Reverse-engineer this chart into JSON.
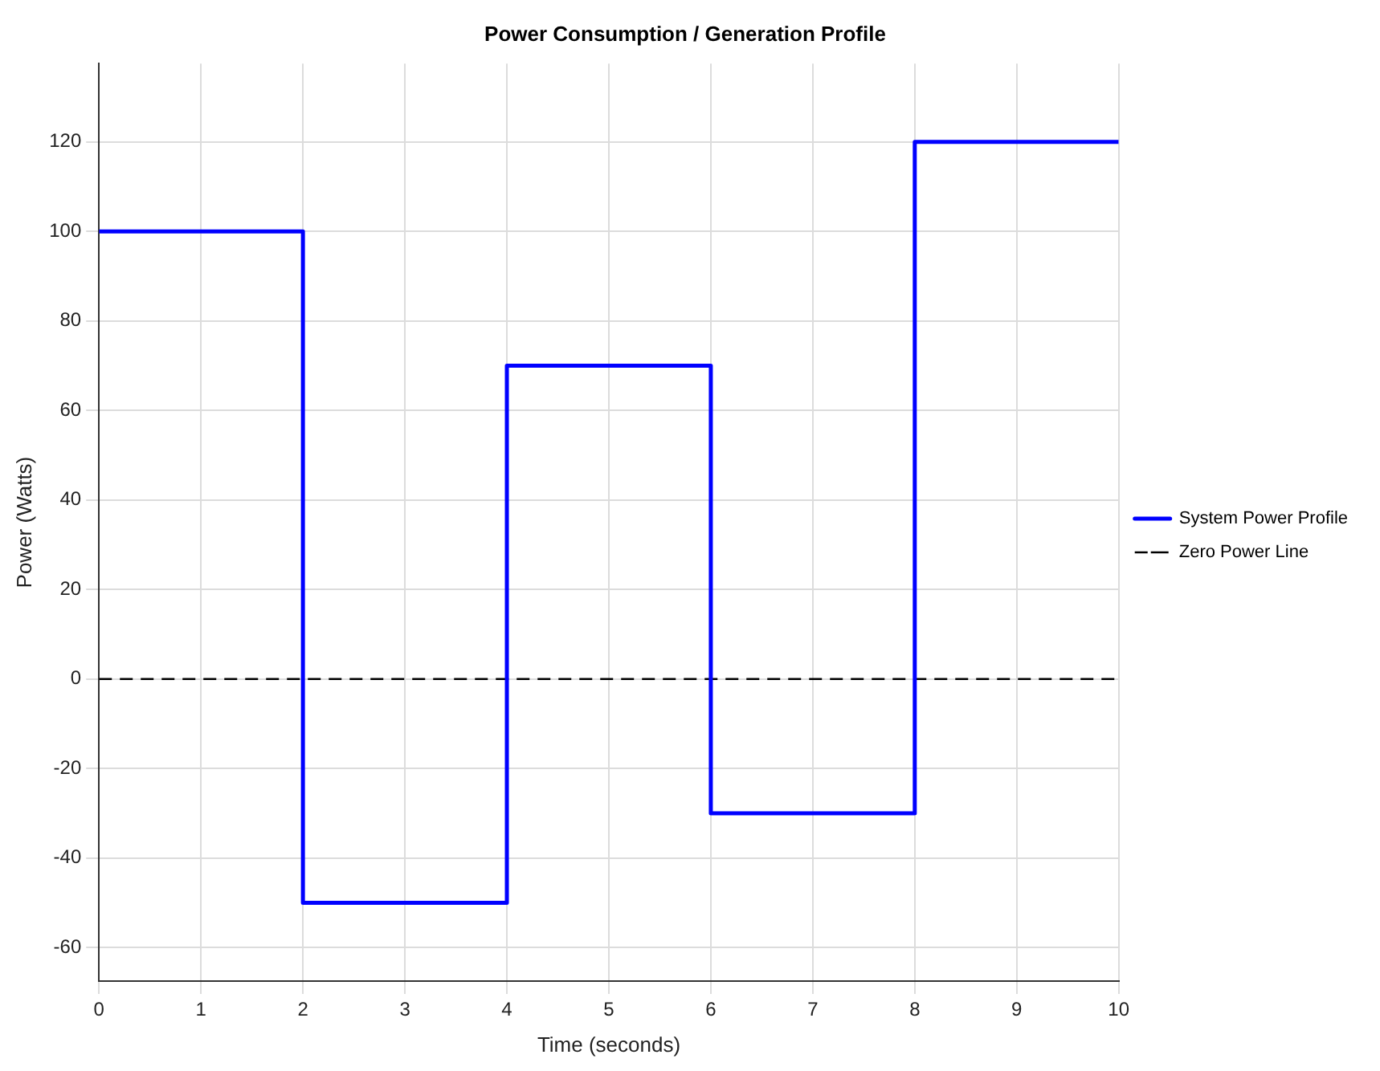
{
  "chart_data": {
    "type": "step",
    "title": "Power Consumption / Generation Profile",
    "xlabel": "Time (seconds)",
    "ylabel": "Power (Watts)",
    "x": [
      0,
      2,
      4,
      6,
      8,
      10
    ],
    "series": [
      {
        "name": "System Power Profile",
        "color": "#0000ff",
        "values": [
          100,
          -50,
          70,
          -30,
          120,
          120
        ]
      }
    ],
    "ref_lines": [
      {
        "axis": "y",
        "value": 0,
        "label": "Zero Power Line",
        "color": "#000000",
        "line_style": "dashed"
      }
    ],
    "xlim": [
      0,
      10
    ],
    "xticks": [
      0,
      1,
      2,
      3,
      4,
      5,
      6,
      7,
      8,
      9,
      10
    ],
    "ylim": [
      -67.5,
      137.5
    ],
    "yticks": [
      -60,
      -40,
      -20,
      0,
      20,
      40,
      60,
      80,
      100,
      120
    ],
    "grid": true,
    "legend": "right"
  }
}
